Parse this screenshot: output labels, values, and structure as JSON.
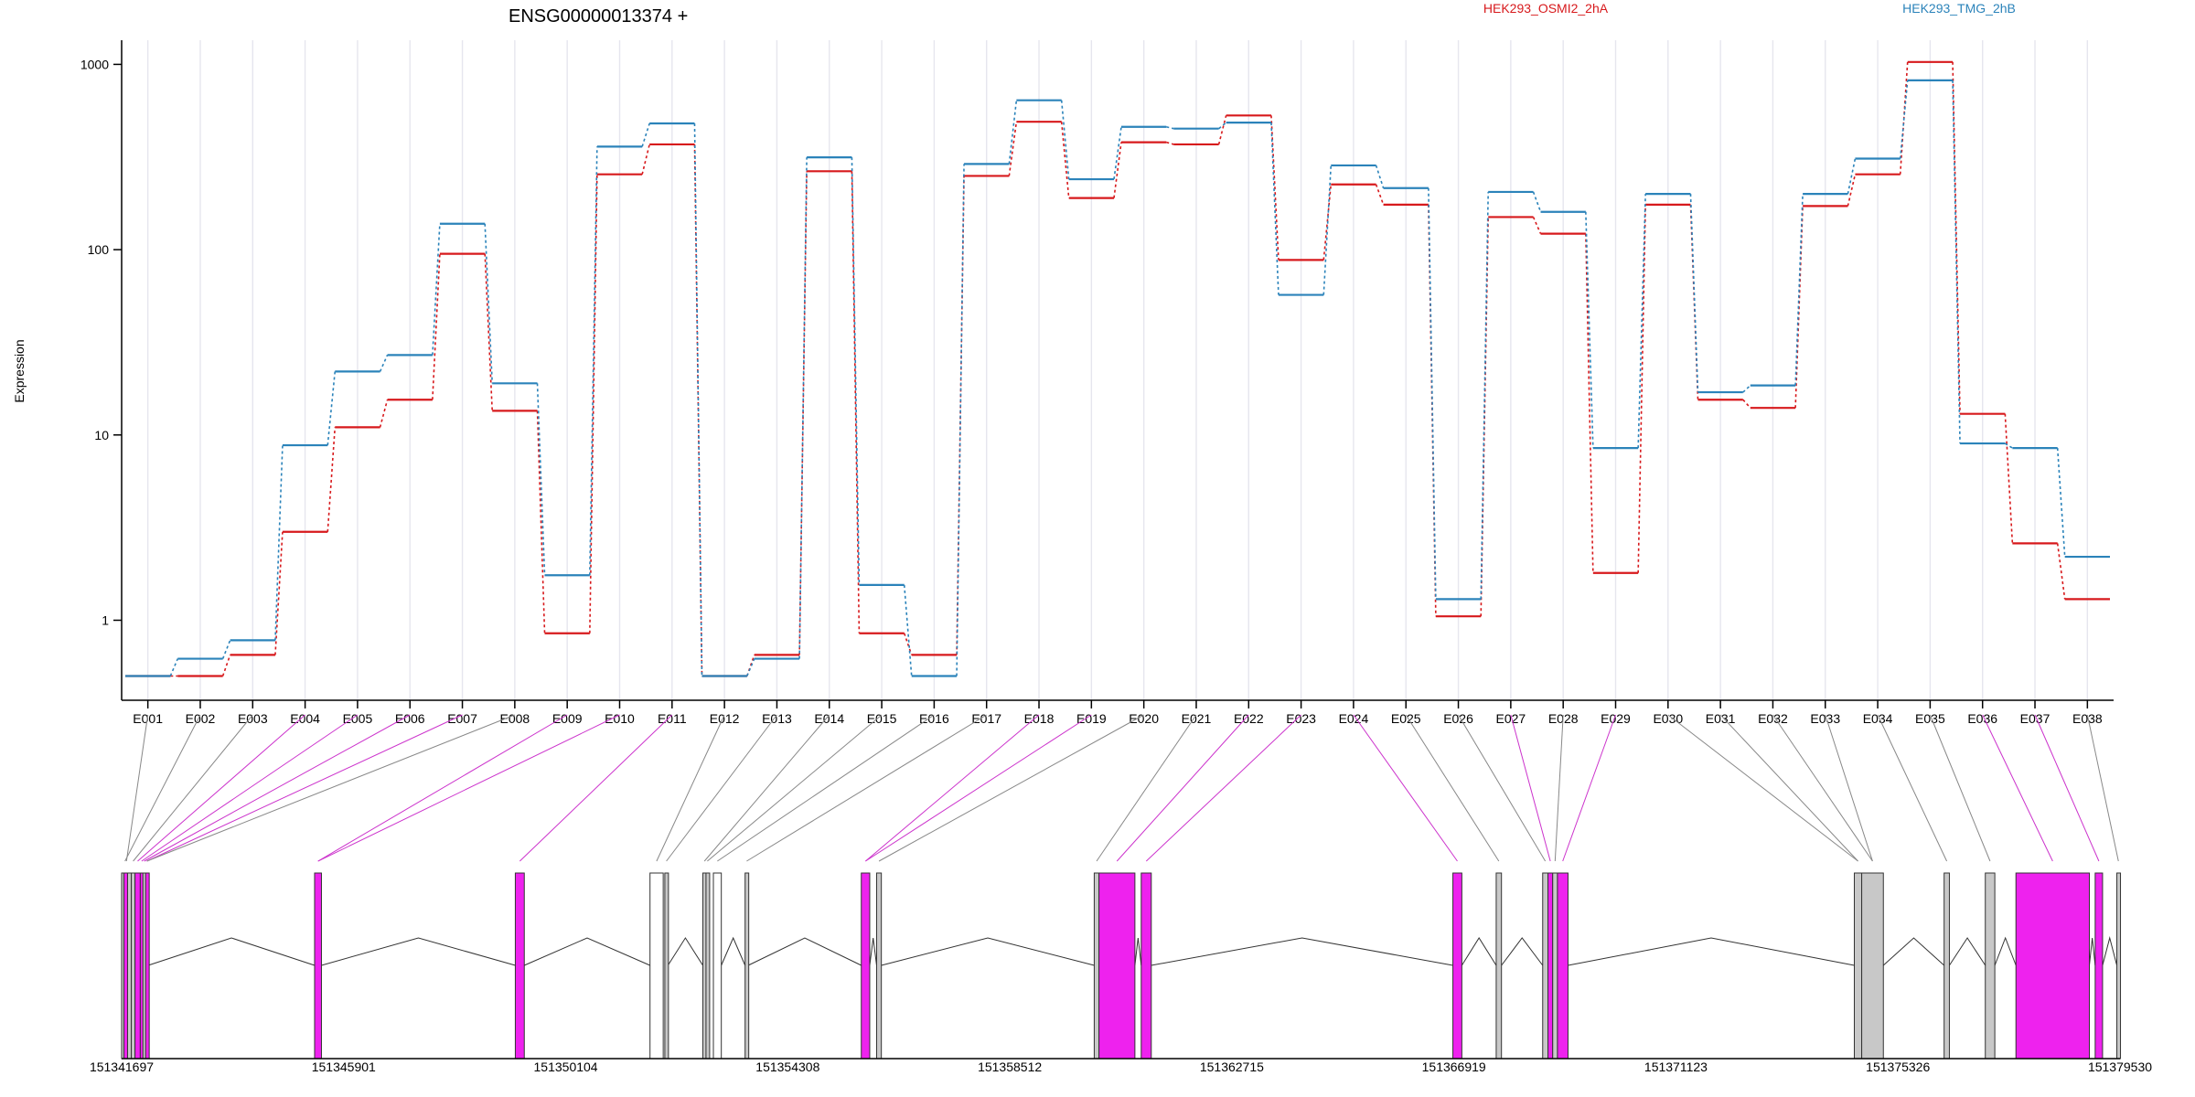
{
  "chart_data": {
    "type": "line",
    "title": "ENSG00000013374 +",
    "ylabel": "Expression",
    "yscale": "log",
    "ylim": [
      0.37,
      1350
    ],
    "y_ticks": [
      1,
      10,
      100,
      1000
    ],
    "y_tick_labels": [
      "1",
      "10",
      "100",
      "1000"
    ],
    "categories": [
      "E001",
      "E002",
      "E003",
      "E004",
      "E005",
      "E006",
      "E007",
      "E008",
      "E009",
      "E010",
      "E011",
      "E012",
      "E013",
      "E014",
      "E015",
      "E016",
      "E017",
      "E018",
      "E019",
      "E020",
      "E021",
      "E022",
      "E023",
      "E024",
      "E025",
      "E026",
      "E027",
      "E028",
      "E029",
      "E030",
      "E031",
      "E032",
      "E033",
      "E034",
      "E035",
      "E036",
      "E037",
      "E038"
    ],
    "series": [
      {
        "name": "HEK293_OSMI2_2hA",
        "color": "#d7191c",
        "values": [
          0.5,
          0.5,
          0.65,
          3.0,
          11.0,
          15.5,
          95,
          13.5,
          0.85,
          255,
          370,
          0.5,
          0.65,
          265,
          0.85,
          0.65,
          250,
          490,
          190,
          380,
          370,
          530,
          88,
          225,
          175,
          1.05,
          150,
          122,
          1.8,
          175,
          15.5,
          14.0,
          172,
          255,
          1030,
          13.0,
          2.6,
          1.3
        ]
      },
      {
        "name": "HEK293_TMG_2hB",
        "color": "#2b83ba",
        "values": [
          0.5,
          0.62,
          0.78,
          8.8,
          22,
          27,
          138,
          19,
          1.75,
          360,
          480,
          0.5,
          0.62,
          315,
          1.55,
          0.5,
          290,
          640,
          240,
          460,
          450,
          485,
          57,
          285,
          215,
          1.3,
          205,
          160,
          8.5,
          200,
          17,
          18.5,
          200,
          310,
          820,
          9.0,
          8.5,
          2.2
        ]
      }
    ],
    "x_positions": [
      "151341697",
      "151345901",
      "151350104",
      "151354308",
      "151358512",
      "151362715",
      "151366919",
      "151371123",
      "151375326",
      "151379530"
    ],
    "xlim": [
      151341697,
      151379530
    ],
    "exons": [
      {
        "id": "E001",
        "start": 151341697,
        "end": 151341880,
        "color": "#c8c8c8"
      },
      {
        "id": "E002",
        "start": 151341740,
        "end": 151341780,
        "color": "#ee22ee"
      },
      {
        "id": "E003",
        "start": 151341880,
        "end": 151341950,
        "color": "#c8c8c8"
      },
      {
        "id": "E004",
        "start": 151341950,
        "end": 151342050,
        "color": "#ee22ee"
      },
      {
        "id": "E005",
        "start": 151342050,
        "end": 151342100,
        "color": "#ee22ee"
      },
      {
        "id": "E006",
        "start": 151342100,
        "end": 151342150,
        "color": "#c8c8c8"
      },
      {
        "id": "E007",
        "start": 151342150,
        "end": 151342200,
        "color": "#ee22ee"
      },
      {
        "id": "E008",
        "start": 151345350,
        "end": 151345480,
        "color": "#ee22ee"
      },
      {
        "id": "E009",
        "start": 151349150,
        "end": 151349320,
        "color": "#ee22ee"
      },
      {
        "id": "E010",
        "start": 151351700,
        "end": 151351950,
        "color": "#ffffff"
      },
      {
        "id": "E011",
        "start": 151351980,
        "end": 151352040,
        "color": "#c8c8c8"
      },
      {
        "id": "E012",
        "start": 151352700,
        "end": 151352760,
        "color": "#c8c8c8"
      },
      {
        "id": "E013",
        "start": 151352760,
        "end": 151352810,
        "color": "#c8c8c8"
      },
      {
        "id": "E014",
        "start": 151352900,
        "end": 151353050,
        "color": "#ffffff"
      },
      {
        "id": "E015",
        "start": 151353500,
        "end": 151353560,
        "color": "#c8c8c8"
      },
      {
        "id": "E016",
        "start": 151355700,
        "end": 151355860,
        "color": "#ee22ee"
      },
      {
        "id": "E017",
        "start": 151355990,
        "end": 151356080,
        "color": "#c8c8c8"
      },
      {
        "id": "E018",
        "start": 151360110,
        "end": 151360200,
        "color": "#c8c8c8"
      },
      {
        "id": "E019",
        "start": 151360200,
        "end": 151360880,
        "color": "#ee22ee"
      },
      {
        "id": "E020",
        "start": 151361000,
        "end": 151361190,
        "color": "#ee22ee"
      },
      {
        "id": "E021",
        "start": 151366900,
        "end": 151367070,
        "color": "#ee22ee"
      },
      {
        "id": "E022",
        "start": 151367720,
        "end": 151367820,
        "color": "#c8c8c8"
      },
      {
        "id": "E023",
        "start": 151368600,
        "end": 151368700,
        "color": "#c8c8c8"
      },
      {
        "id": "E024",
        "start": 151368700,
        "end": 151368790,
        "color": "#ee22ee"
      },
      {
        "id": "E025",
        "start": 151368790,
        "end": 151368880,
        "color": "#c8c8c8"
      },
      {
        "id": "E026",
        "start": 151368880,
        "end": 151369080,
        "color": "#ee22ee"
      },
      {
        "id": "E027",
        "start": 151374500,
        "end": 151374640,
        "color": "#c8c8c8"
      },
      {
        "id": "E028",
        "start": 151374640,
        "end": 151375050,
        "color": "#c8c8c8"
      },
      {
        "id": "E029",
        "start": 151376200,
        "end": 151376300,
        "color": "#c8c8c8"
      },
      {
        "id": "E030",
        "start": 151376980,
        "end": 151377160,
        "color": "#c8c8c8"
      },
      {
        "id": "E031",
        "start": 151377560,
        "end": 151378950,
        "color": "#ee22ee"
      },
      {
        "id": "E032",
        "start": 151379060,
        "end": 151379200,
        "color": "#ee22ee"
      },
      {
        "id": "E033",
        "start": 151379470,
        "end": 151379530,
        "color": "#c8c8c8"
      }
    ],
    "exon_links": [
      {
        "bin": "E001",
        "exon": "E001",
        "color": "#888888"
      },
      {
        "bin": "E002",
        "exon": "E002",
        "color": "#888888"
      },
      {
        "bin": "E003",
        "exon": "E003",
        "color": "#888888"
      },
      {
        "bin": "E004",
        "exon": "E004",
        "color": "#cc33cc"
      },
      {
        "bin": "E005",
        "exon": "E005",
        "color": "#cc33cc"
      },
      {
        "bin": "E006",
        "exon": "E006",
        "color": "#cc33cc"
      },
      {
        "bin": "E007",
        "exon": "E007",
        "color": "#cc33cc"
      },
      {
        "bin": "E008",
        "exon": "E007",
        "color": "#888888"
      },
      {
        "bin": "E009",
        "exon": "E008",
        "color": "#cc33cc"
      },
      {
        "bin": "E010",
        "exon": "E008",
        "color": "#cc33cc"
      },
      {
        "bin": "E011",
        "exon": "E009",
        "color": "#cc33cc"
      },
      {
        "bin": "E012",
        "exon": "E010",
        "color": "#888888"
      },
      {
        "bin": "E013",
        "exon": "E011",
        "color": "#888888"
      },
      {
        "bin": "E014",
        "exon": "E012",
        "color": "#888888"
      },
      {
        "bin": "E015",
        "exon": "E013",
        "color": "#888888"
      },
      {
        "bin": "E016",
        "exon": "E014",
        "color": "#888888"
      },
      {
        "bin": "E017",
        "exon": "E015",
        "color": "#888888"
      },
      {
        "bin": "E018",
        "exon": "E016",
        "color": "#cc33cc"
      },
      {
        "bin": "E019",
        "exon": "E016",
        "color": "#cc33cc"
      },
      {
        "bin": "E020",
        "exon": "E017",
        "color": "#888888"
      },
      {
        "bin": "E021",
        "exon": "E018",
        "color": "#888888"
      },
      {
        "bin": "E022",
        "exon": "E019",
        "color": "#cc33cc"
      },
      {
        "bin": "E023",
        "exon": "E020",
        "color": "#cc33cc"
      },
      {
        "bin": "E024",
        "exon": "E021",
        "color": "#cc33cc"
      },
      {
        "bin": "E025",
        "exon": "E022",
        "color": "#888888"
      },
      {
        "bin": "E026",
        "exon": "E023",
        "color": "#888888"
      },
      {
        "bin": "E027",
        "exon": "E024",
        "color": "#cc33cc"
      },
      {
        "bin": "E028",
        "exon": "E025",
        "color": "#888888"
      },
      {
        "bin": "E029",
        "exon": "E026",
        "color": "#cc33cc"
      },
      {
        "bin": "E030",
        "exon": "E027",
        "color": "#888888"
      },
      {
        "bin": "E031",
        "exon": "E027",
        "color": "#888888"
      },
      {
        "bin": "E032",
        "exon": "E028",
        "color": "#888888"
      },
      {
        "bin": "E033",
        "exon": "E028",
        "color": "#888888"
      },
      {
        "bin": "E034",
        "exon": "E029",
        "color": "#888888"
      },
      {
        "bin": "E035",
        "exon": "E030",
        "color": "#888888"
      },
      {
        "bin": "E036",
        "exon": "E031",
        "color": "#cc33cc"
      },
      {
        "bin": "E037",
        "exon": "E032",
        "color": "#cc33cc"
      },
      {
        "bin": "E038",
        "exon": "E033",
        "color": "#888888"
      }
    ]
  }
}
